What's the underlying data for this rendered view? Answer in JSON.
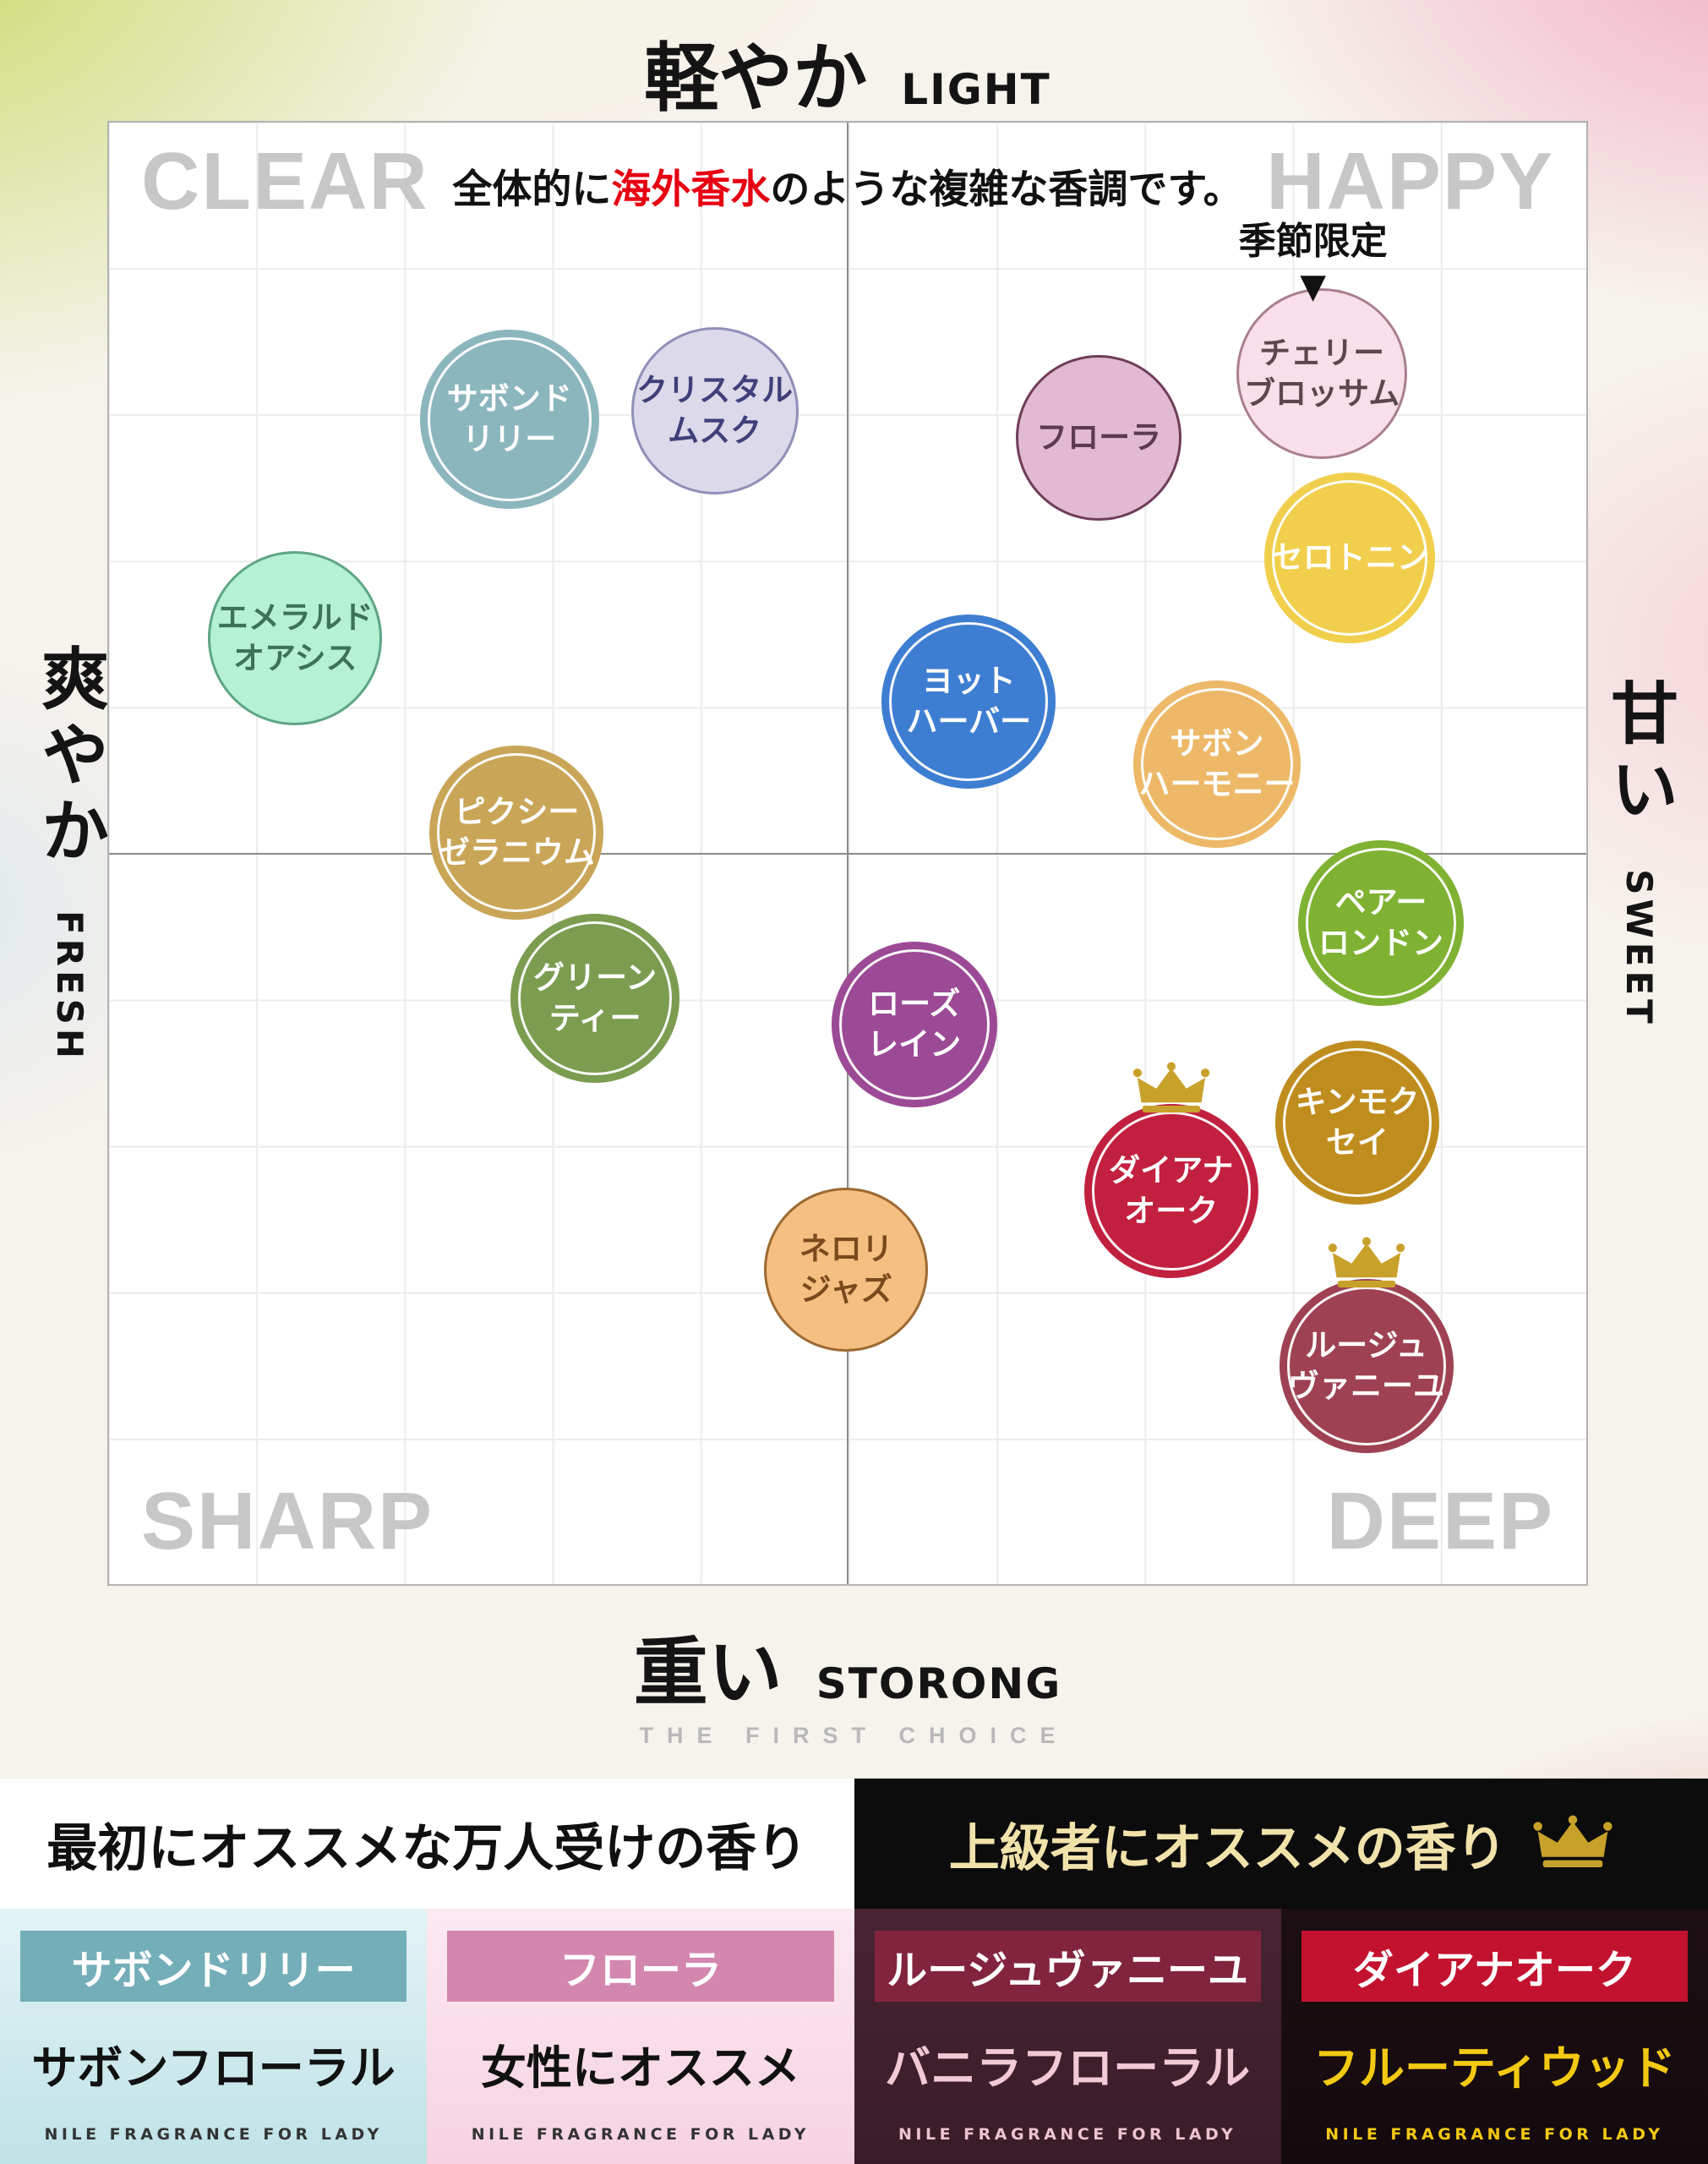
{
  "axes": {
    "top": {
      "jp": "軽やか",
      "en": "LIGHT"
    },
    "bottom": {
      "jp": "重い",
      "en": "STORONG"
    },
    "left": {
      "jp": "爽やか",
      "en": "FRESH"
    },
    "right": {
      "jp": "甘い",
      "en": "SWEET"
    }
  },
  "chart": {
    "corners": {
      "top_left": "CLEAR",
      "top_right": "HAPPY",
      "bottom_left": "SHARP",
      "bottom_right": "DEEP"
    },
    "annotation": {
      "prefix": "全体的に",
      "highlight": "海外香水",
      "suffix": "のような複雑な香調です。",
      "highlight_color": "#e60012"
    },
    "seasonal": {
      "label": "季節限定",
      "arrow": "▼"
    }
  },
  "chart_data": {
    "type": "scatter",
    "title": "フレグランス香調マップ",
    "x_axis": {
      "label_left": "爽やか FRESH",
      "label_right": "甘い SWEET",
      "range": [
        0,
        100
      ]
    },
    "y_axis": {
      "label_top": "軽やか LIGHT",
      "label_bottom": "重い STORONG",
      "range": [
        0,
        100
      ]
    },
    "grid": true,
    "quadrants": [
      "CLEAR",
      "HAPPY",
      "SHARP",
      "DEEP"
    ],
    "points": [
      {
        "id": "savon-lily",
        "name": "サボンドリリー",
        "lines": [
          "サボンド",
          "リリー"
        ],
        "x": 27.1,
        "y": 20.3,
        "size": 212,
        "fill": "#8cb6bd",
        "text": "#ffffff",
        "ring": "white",
        "crown": false
      },
      {
        "id": "crystal-musk",
        "name": "クリスタルムスク",
        "lines": [
          "クリスタル",
          "ムスク"
        ],
        "x": 41.0,
        "y": 19.7,
        "size": 198,
        "fill": "#dbd9ea",
        "text": "#3f3f7a",
        "ring": "outline",
        "ring_color": "#8f8fb8",
        "crown": false
      },
      {
        "id": "flora",
        "name": "フローラ",
        "lines": [
          "フローラ"
        ],
        "x": 67.0,
        "y": 21.6,
        "size": 196,
        "fill": "#e1bad1",
        "text": "#5c3a52",
        "ring": "outline",
        "ring_color": "#6f3d59",
        "crown": false
      },
      {
        "id": "cherry-blossom",
        "name": "チェリーブロッサム",
        "lines": [
          "チェリー",
          "ブロッサム"
        ],
        "x": 82.1,
        "y": 17.2,
        "size": 202,
        "fill": "#f8dfe9",
        "text": "#5d474f",
        "ring": "outline",
        "ring_color": "#a97f90",
        "crown": false,
        "note": "季節限定"
      },
      {
        "id": "serotonin",
        "name": "セロトニン",
        "lines": [
          "セロトニン"
        ],
        "x": 84.0,
        "y": 29.8,
        "size": 202,
        "fill": "#f1cf4c",
        "text": "#ffffff",
        "ring": "white",
        "crown": false
      },
      {
        "id": "emerald-oasis",
        "name": "エメラルドオアシス",
        "lines": [
          "エメラルド",
          "オアシス"
        ],
        "x": 12.6,
        "y": 35.3,
        "size": 206,
        "fill": "#b5f1d4",
        "text": "#3c7258",
        "ring": "outline",
        "ring_color": "#5ea584",
        "crown": false
      },
      {
        "id": "yacht-harbor",
        "name": "ヨットハーバー",
        "lines": [
          "ヨット",
          "ハーバー"
        ],
        "x": 58.2,
        "y": 39.6,
        "size": 206,
        "fill": "#3e7ed2",
        "text": "#ffffff",
        "ring": "white",
        "crown": false
      },
      {
        "id": "savon-harmony",
        "name": "サボンハーモニー",
        "lines": [
          "サボン",
          "ハーモニー"
        ],
        "x": 75.0,
        "y": 43.9,
        "size": 198,
        "fill": "#edb968",
        "text": "#ffffff",
        "ring": "white",
        "crown": false
      },
      {
        "id": "pixie-geranium",
        "name": "ピクシーゼラニウム",
        "lines": [
          "ピクシー",
          "ゼラニウム"
        ],
        "x": 27.6,
        "y": 48.6,
        "size": 206,
        "fill": "#c9a557",
        "text": "#ffffff",
        "ring": "white",
        "crown": false
      },
      {
        "id": "pear-london",
        "name": "ペアーロンドン",
        "lines": [
          "ペアー",
          "ロンドン"
        ],
        "x": 86.1,
        "y": 54.8,
        "size": 196,
        "fill": "#7fb232",
        "text": "#ffffff",
        "ring": "white",
        "crown": false
      },
      {
        "id": "green-tea",
        "name": "グリーンティー",
        "lines": [
          "グリーン",
          "ティー"
        ],
        "x": 32.9,
        "y": 59.9,
        "size": 200,
        "fill": "#7c9c50",
        "text": "#ffffff",
        "ring": "white",
        "crown": false
      },
      {
        "id": "rose-rain",
        "name": "ローズレイン",
        "lines": [
          "ローズ",
          "レイン"
        ],
        "x": 54.5,
        "y": 61.7,
        "size": 196,
        "fill": "#9c4a96",
        "text": "#ffffff",
        "ring": "white",
        "crown": false
      },
      {
        "id": "kinmokusei",
        "name": "キンモクセイ",
        "lines": [
          "キンモク",
          "セイ"
        ],
        "x": 84.5,
        "y": 68.4,
        "size": 194,
        "fill": "#bf8d1e",
        "text": "#ffffff",
        "ring": "white",
        "crown": false
      },
      {
        "id": "diana-oak",
        "name": "ダイアナオーク",
        "lines": [
          "ダイアナ",
          "オーク"
        ],
        "x": 71.9,
        "y": 73.1,
        "size": 206,
        "fill": "#c2203f",
        "text": "#ffffff",
        "ring": "white",
        "crown": true
      },
      {
        "id": "neroli-jazz",
        "name": "ネロリジャズ",
        "lines": [
          "ネロリ",
          "ジャズ"
        ],
        "x": 49.9,
        "y": 78.5,
        "size": 194,
        "fill": "#f5bf82",
        "text": "#7a4a1e",
        "ring": "outline",
        "ring_color": "#9c6a33",
        "crown": false
      },
      {
        "id": "rouge-vanille",
        "name": "ルージュヴァニーユ",
        "lines": [
          "ルージュ",
          "ヴァニーユ"
        ],
        "x": 85.1,
        "y": 85.1,
        "size": 206,
        "fill": "#9e4253",
        "text": "#ffffff",
        "ring": "white",
        "crown": true
      }
    ]
  },
  "divider": {
    "text": "THE FIRST CHOICE"
  },
  "recommend": {
    "headers": {
      "left": "最初にオススメな万人受けの香り",
      "right": "上級者にオススメの香り"
    },
    "brand": "NILE FRAGRANCE FOR LADY",
    "cards": [
      {
        "id": "savon-lily",
        "label": "サボンドリリー",
        "label_bg": "#74aeb8",
        "label_color": "#ffffff",
        "subtitle": "サボンフローラル",
        "subtitle_color": "#111111",
        "brand_color": "#333333",
        "bg1": "#e2f3f5",
        "bg2": "#bfe2e7"
      },
      {
        "id": "flora",
        "label": "フローラ",
        "label_bg": "#d387ae",
        "label_color": "#ffffff",
        "subtitle": "女性にオススメ",
        "subtitle_color": "#111111",
        "brand_color": "#333333",
        "bg1": "#fce9f1",
        "bg2": "#f6d2e2"
      },
      {
        "id": "rouge-vanille",
        "label": "ルージュヴァニーユ",
        "label_bg": "#82243d",
        "label_color": "#ffffff",
        "subtitle": "バニラフローラル",
        "subtitle_color": "#f4c9d6",
        "brand_color": "#eec3d0",
        "bg1": "#482433",
        "bg2": "#3a1c29"
      },
      {
        "id": "diana-oak",
        "label": "ダイアナオーク",
        "label_bg": "#c3122f",
        "label_color": "#ffffff",
        "subtitle": "フルーティウッド",
        "subtitle_color": "#f3c913",
        "brand_color": "#f3c913",
        "bg1": "#1d0f13",
        "bg2": "#140a0d"
      }
    ]
  }
}
